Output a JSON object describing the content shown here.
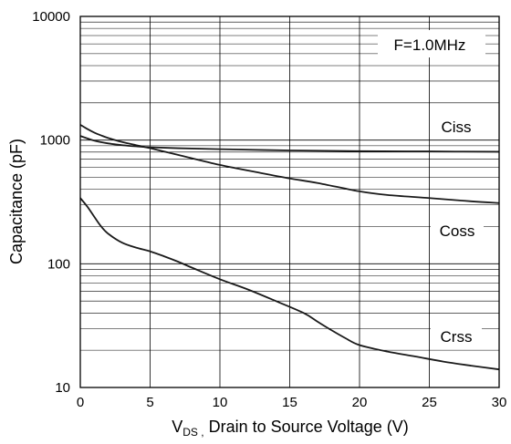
{
  "chart_data": {
    "type": "line",
    "xlabel_main": "V",
    "xlabel_sub": "DS ,",
    "xlabel_rest": " Drain to Source Voltage  (V)",
    "ylabel": "Capacitance (pF)",
    "xlim": [
      0,
      30
    ],
    "ylim": [
      10,
      10000
    ],
    "yscale": "log",
    "grid": true,
    "x_ticks": [
      0,
      5,
      10,
      15,
      20,
      25,
      30
    ],
    "x_tick_labels": [
      "0",
      "5",
      "10",
      "15",
      "20",
      "25",
      "30"
    ],
    "y_ticks": [
      10,
      100,
      1000,
      10000
    ],
    "y_tick_labels": [
      "10",
      "100",
      "1000",
      "10000"
    ],
    "annotation": "F=1.0MHz",
    "series": [
      {
        "name": "Ciss",
        "x": [
          0,
          1,
          2,
          3,
          4,
          5,
          7,
          10,
          15,
          20,
          25,
          30
        ],
        "y": [
          1080,
          990,
          940,
          910,
          890,
          875,
          860,
          845,
          825,
          815,
          810,
          805
        ]
      },
      {
        "name": "Coss",
        "x": [
          0,
          0.5,
          1,
          1.5,
          2,
          3,
          4,
          5,
          7,
          10,
          13,
          15,
          17,
          20,
          22,
          25,
          28,
          30
        ],
        "y": [
          1330,
          1230,
          1150,
          1090,
          1040,
          965,
          910,
          860,
          760,
          630,
          540,
          490,
          450,
          385,
          360,
          340,
          320,
          310
        ]
      },
      {
        "name": "Crss",
        "x": [
          0,
          0.5,
          1,
          1.5,
          2,
          3,
          4,
          5,
          6,
          7,
          8,
          10,
          12,
          14,
          16,
          17,
          18,
          19,
          20,
          22,
          24,
          26,
          28,
          30
        ],
        "y": [
          340,
          290,
          240,
          200,
          175,
          148,
          135,
          126,
          115,
          104,
          93,
          75,
          62,
          50,
          40,
          34,
          29,
          25,
          22,
          19.5,
          17.8,
          16.2,
          15,
          14
        ]
      }
    ]
  }
}
